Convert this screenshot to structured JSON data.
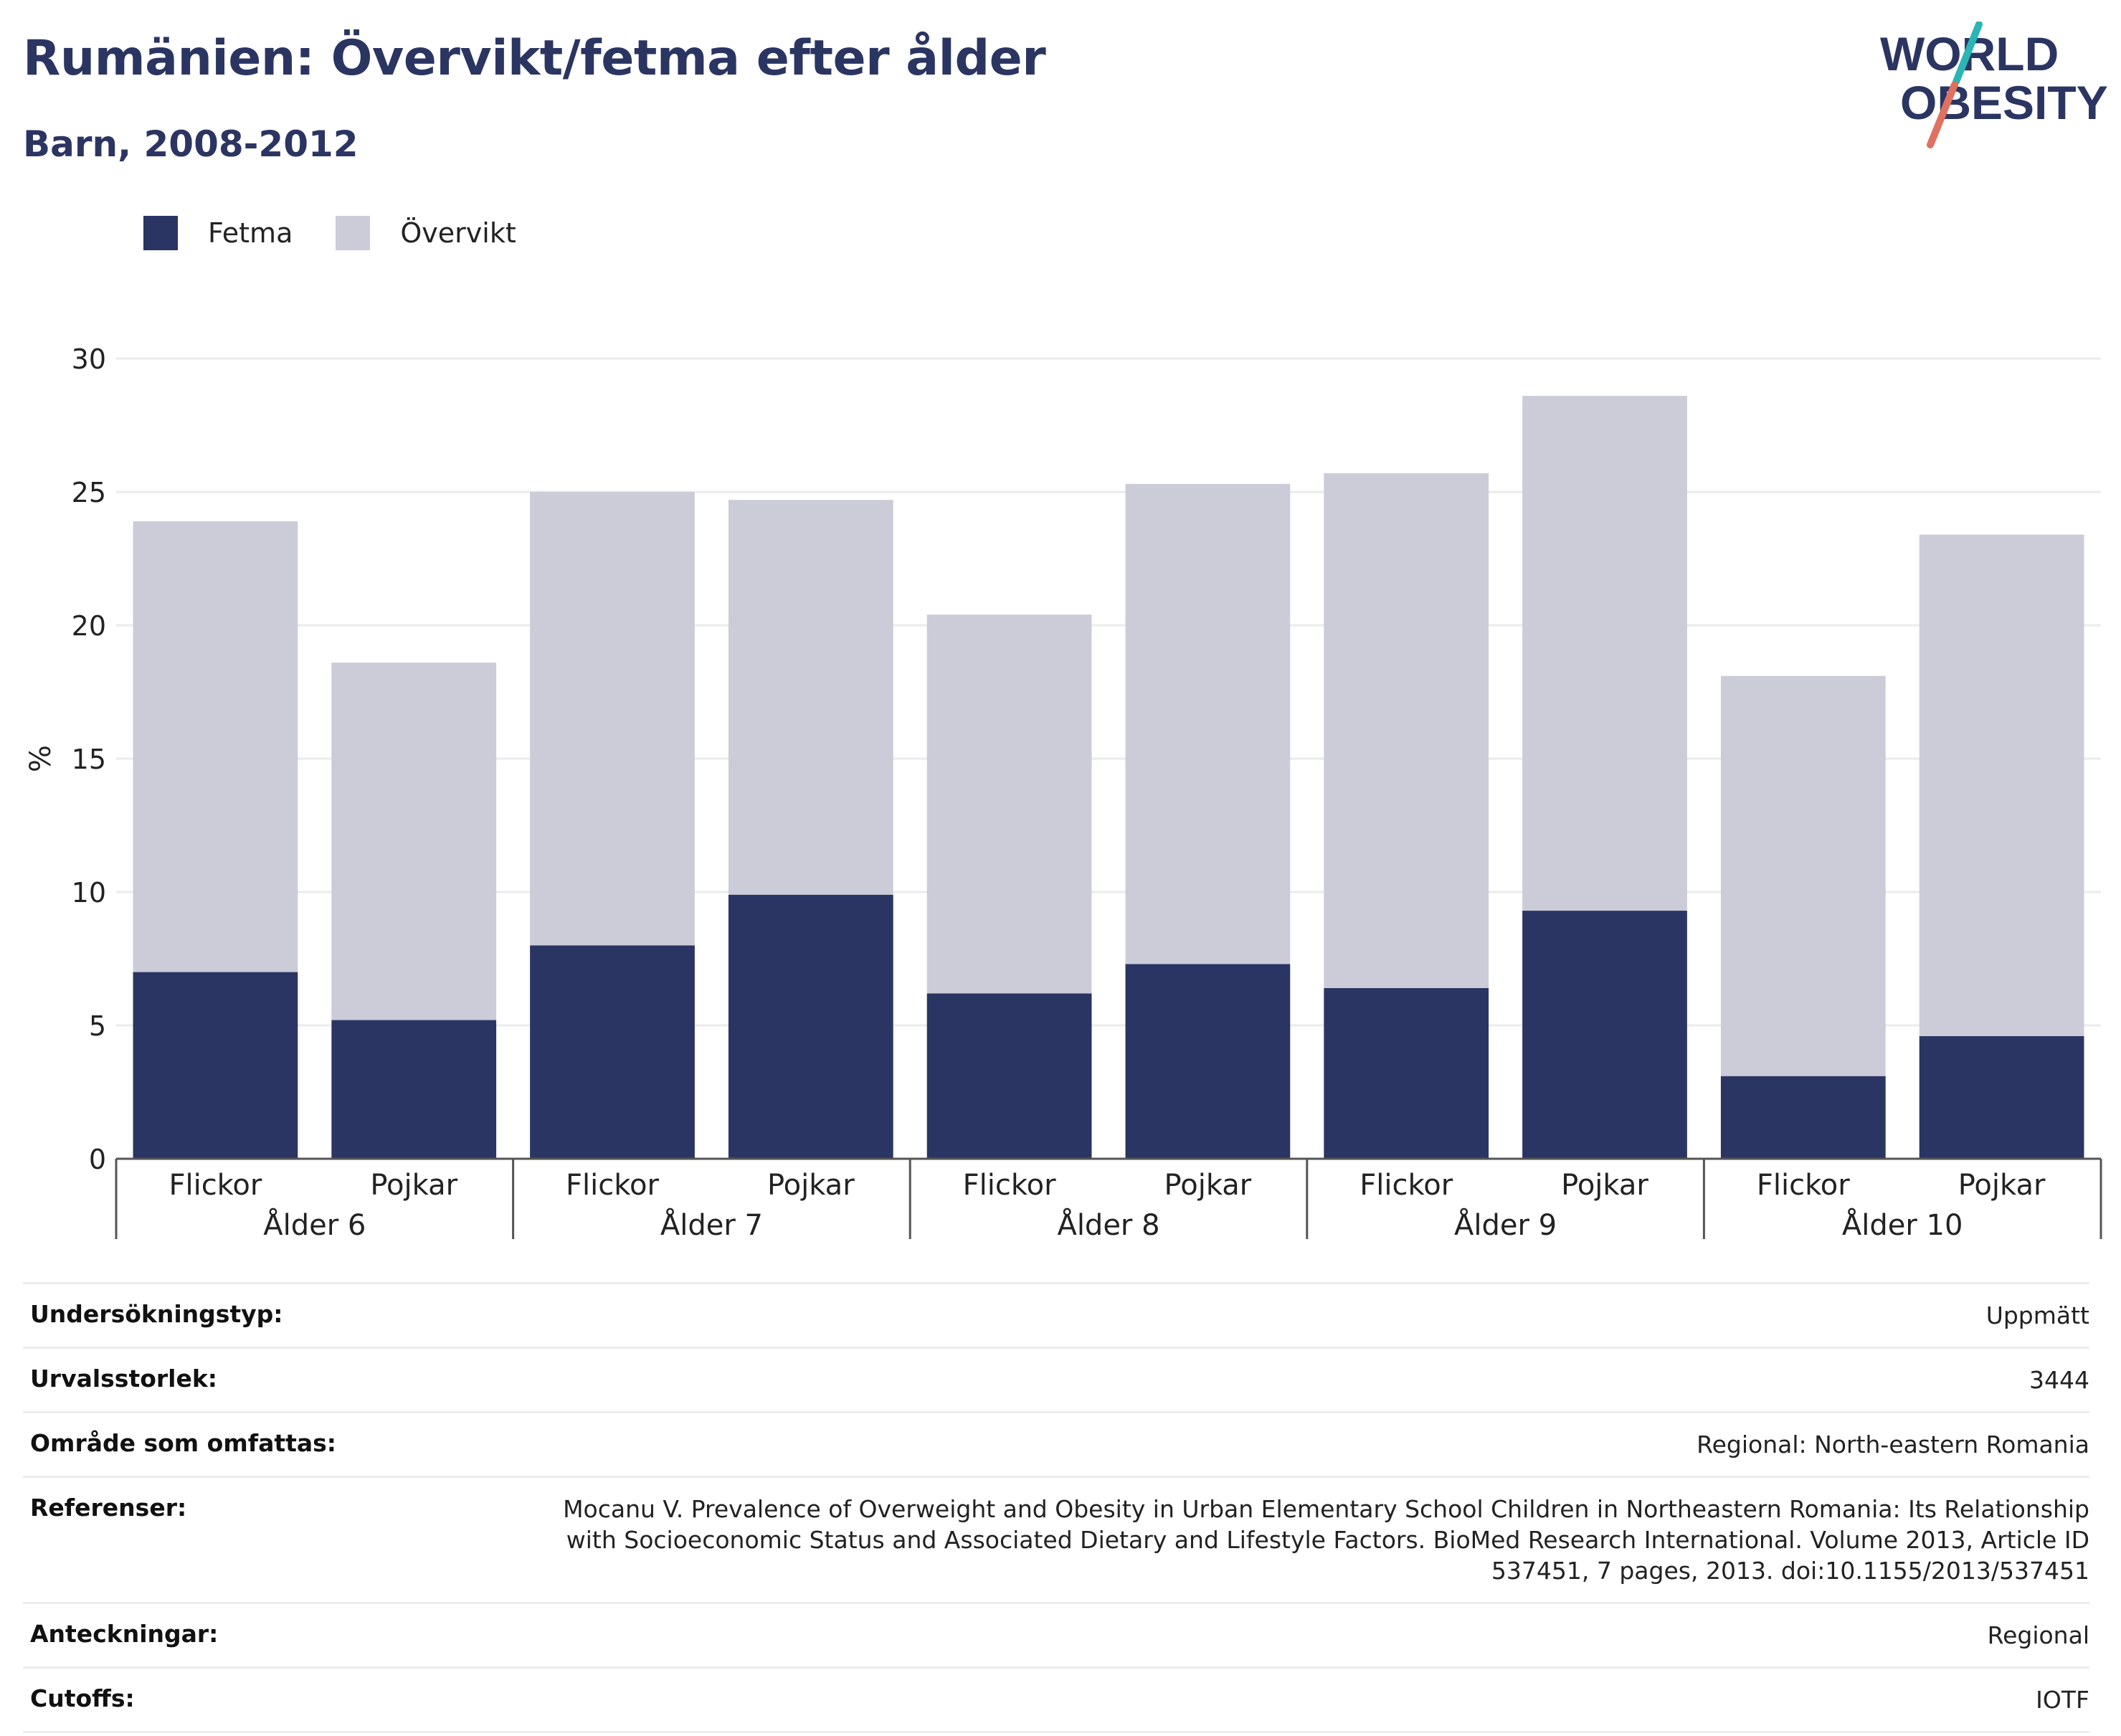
{
  "header": {
    "title": "Rumänien: Övervikt/fetma efter ålder",
    "subtitle": "Barn, 2008-2012"
  },
  "logo": {
    "line1": "WORLD",
    "line2": "OBESITY"
  },
  "colors": {
    "fetma": "#2a3563",
    "overvikt": "#cbccd8",
    "title": "#2b3562",
    "logo_teal": "#2bb5b5",
    "logo_red": "#e07060"
  },
  "legend": [
    {
      "label": "Fetma",
      "color": "#2a3563"
    },
    {
      "label": "Övervikt",
      "color": "#cbccd8"
    }
  ],
  "chart_data": {
    "type": "bar",
    "stacked": true,
    "ylabel": "%",
    "ylim": [
      0,
      30
    ],
    "yticks": [
      0,
      5,
      10,
      15,
      20,
      25,
      30
    ],
    "grid": true,
    "legend_position": "top-left",
    "groups": [
      "Ålder 6",
      "Ålder 7",
      "Ålder 8",
      "Ålder 9",
      "Ålder 10"
    ],
    "subcategories": [
      "Flickor",
      "Pojkar"
    ],
    "categories": [
      "Flickor",
      "Pojkar",
      "Flickor",
      "Pojkar",
      "Flickor",
      "Pojkar",
      "Flickor",
      "Pojkar",
      "Flickor",
      "Pojkar"
    ],
    "series": [
      {
        "name": "Fetma",
        "values": [
          7.0,
          5.2,
          8.0,
          9.9,
          6.2,
          7.3,
          6.4,
          9.3,
          3.1,
          4.6
        ]
      },
      {
        "name": "Övervikt",
        "values": [
          16.9,
          13.4,
          17.0,
          14.8,
          14.2,
          18.0,
          19.3,
          19.3,
          15.0,
          18.8
        ]
      }
    ]
  },
  "info": [
    {
      "label": "Undersökningstyp:",
      "value": "Uppmätt"
    },
    {
      "label": "Urvalsstorlek:",
      "value": "3444"
    },
    {
      "label": "Område som omfattas:",
      "value": "Regional: North-eastern Romania"
    },
    {
      "label": "Referenser:",
      "value": "Mocanu V. Prevalence of Overweight and Obesity in Urban Elementary School Children in Northeastern Romania: Its Relationship with Socioeconomic Status and Associated Dietary and Lifestyle Factors. BioMed Research International. Volume 2013, Article ID 537451, 7 pages, 2013. doi:10.1155/2013/537451"
    },
    {
      "label": "Anteckningar:",
      "value": "Regional"
    },
    {
      "label": "Cutoffs:",
      "value": "IOTF"
    }
  ]
}
